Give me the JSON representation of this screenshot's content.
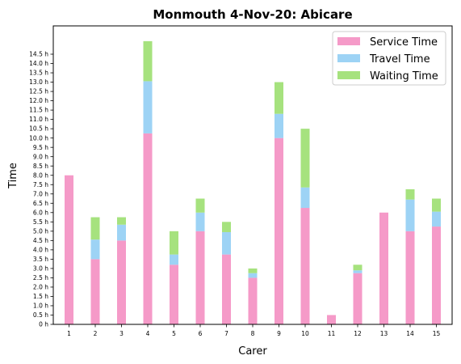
{
  "chart_data": {
    "type": "bar",
    "stacked": true,
    "title": "Monmouth 4-Nov-20: Abicare",
    "xlabel": "Carer",
    "ylabel": "Time",
    "categories": [
      "1",
      "2",
      "3",
      "4",
      "5",
      "6",
      "7",
      "8",
      "9",
      "10",
      "11",
      "12",
      "13",
      "14",
      "15"
    ],
    "ytick_labels": [
      "0 h",
      "0.5 h",
      "1.0 h",
      "1.5 h",
      "2.0 h",
      "2.5 h",
      "3.0 h",
      "3.5 h",
      "4.0 h",
      "4.5 h",
      "5.0 h",
      "5.5 h",
      "6.0 h",
      "6.5 h",
      "7.0 h",
      "7.5 h",
      "8.0 h",
      "8.5 h",
      "9.0 h",
      "9.5 h",
      "10.0 h",
      "10.5 h",
      "11.0 h",
      "11.5 h",
      "12.0 h",
      "12.5 h",
      "13.0 h",
      "13.5 h",
      "14.0 h",
      "14.5 h"
    ],
    "ylim": [
      0,
      16
    ],
    "grid": false,
    "legend_position": "top-right",
    "series": [
      {
        "name": "Service Time",
        "color": "#f59ac8",
        "values": [
          8.0,
          3.5,
          4.5,
          10.25,
          3.2,
          5.0,
          3.75,
          2.5,
          10.0,
          6.25,
          0.5,
          2.75,
          6.0,
          5.0,
          5.25
        ]
      },
      {
        "name": "Travel Time",
        "color": "#9dd3f5",
        "values": [
          0.0,
          1.05,
          0.85,
          2.8,
          0.55,
          1.0,
          1.2,
          0.25,
          1.3,
          1.1,
          0.0,
          0.15,
          0.0,
          1.7,
          0.8
        ]
      },
      {
        "name": "Waiting Time",
        "color": "#a6e27e",
        "values": [
          0.0,
          1.2,
          0.4,
          2.15,
          1.25,
          0.75,
          0.55,
          0.25,
          1.7,
          3.15,
          0.0,
          0.3,
          0.0,
          0.55,
          0.7
        ]
      }
    ]
  }
}
